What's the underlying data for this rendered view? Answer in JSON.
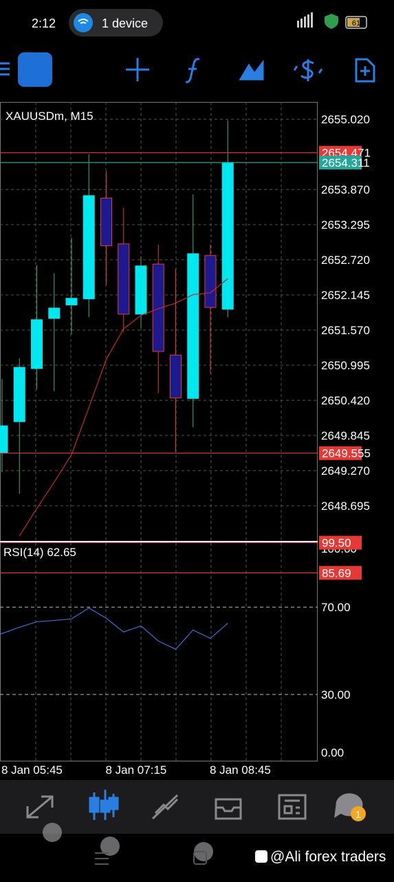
{
  "status_bar": {
    "time": "2:12",
    "hotspot": "1 device",
    "battery": "61"
  },
  "chart_data": [
    {
      "type": "candlestick",
      "title": "XAUUSDm, M15",
      "categories": [
        "8 Jan 05:45",
        null,
        null,
        null,
        null,
        null,
        "8 Jan 07:15",
        null,
        null,
        null,
        null,
        null,
        "8 Jan 08:45",
        null
      ],
      "open": [
        2649.563,
        2650.07,
        2650.94,
        2651.76,
        2651.98,
        2652.08,
        2653.73,
        2652.98,
        2651.83,
        2652.65,
        2651.16,
        2650.45,
        2652.79,
        2651.91
      ],
      "high": [
        2650.77,
        2651.11,
        2652.63,
        2652.5,
        2653.08,
        2654.45,
        2654.17,
        2653.57,
        2652.77,
        2652.97,
        2652.57,
        2653.79,
        2652.97,
        2655.0
      ],
      "low": [
        2649.25,
        2648.89,
        2650.6,
        2650.57,
        2651.5,
        2651.78,
        2652.31,
        2651.54,
        2651.6,
        2650.54,
        2649.57,
        2649.98,
        2650.86,
        2651.78
      ],
      "close": [
        2650.003,
        2650.96,
        2651.74,
        2651.93,
        2652.09,
        2653.77,
        2652.95,
        2651.83,
        2652.62,
        2651.22,
        2650.46,
        2652.82,
        2651.94,
        2654.311
      ],
      "up_color": "#00e8ef",
      "down_color": "#1c1a8e",
      "up_wick": "#3fae7a",
      "down_border": "#e53935",
      "moving_average": {
        "values": [
          null,
          2648.2,
          2648.65,
          2649.08,
          2649.53,
          2650.3,
          2651.09,
          2651.59,
          2651.81,
          2651.92,
          2652.01,
          2652.15,
          2652.18,
          2652.41
        ],
        "color": "#c62828"
      },
      "price_lines": [
        {
          "value": 2654.471,
          "label": "2654.471",
          "color": "#e53935"
        },
        {
          "value": 2654.311,
          "label": "2654.311",
          "color": "#26a69a"
        },
        {
          "value": 2649.555,
          "label": "2649.555",
          "color": "#e53935"
        }
      ],
      "ylim": [
        2648.108,
        2655.302
      ],
      "yticks": [
        {
          "value": 2655.02,
          "label": "2655.020"
        },
        {
          "value": 2653.87,
          "label": "2653.870"
        },
        {
          "value": 2653.295,
          "label": "2653.295"
        },
        {
          "value": 2652.72,
          "label": "2652.720"
        },
        {
          "value": 2652.145,
          "label": "2652.145"
        },
        {
          "value": 2651.57,
          "label": "2651.570"
        },
        {
          "value": 2650.995,
          "label": "2650.995"
        },
        {
          "value": 2650.42,
          "label": "2650.420"
        },
        {
          "value": 2649.845,
          "label": "2649.845"
        },
        {
          "value": 2649.27,
          "label": "2649.270"
        },
        {
          "value": 2648.695,
          "label": "2648.695"
        }
      ],
      "grid": true
    },
    {
      "type": "line",
      "title": "RSI(14)",
      "values": [
        57.6,
        60.8,
        63.3,
        63.9,
        64.6,
        69.6,
        64.9,
        58.6,
        61.4,
        54.5,
        50.7,
        59.5,
        55.7,
        62.65
      ],
      "color": "#3d6fd8",
      "ylim": [
        0,
        100
      ],
      "yticks": [
        {
          "value": 100,
          "label": "100.00"
        },
        {
          "value": 70,
          "label": "70.00"
        },
        {
          "value": 30,
          "label": "30.00"
        },
        {
          "value": 0,
          "label": "0.00"
        }
      ],
      "levels": [
        {
          "value": 99.5,
          "label": "99.50",
          "color": "#e53935"
        },
        {
          "value": 85.69,
          "label": "85.69",
          "color": "#e53935"
        }
      ]
    }
  ],
  "bottom_nav": {
    "chat_badge": "1"
  },
  "watermark": "@Ali forex traders"
}
